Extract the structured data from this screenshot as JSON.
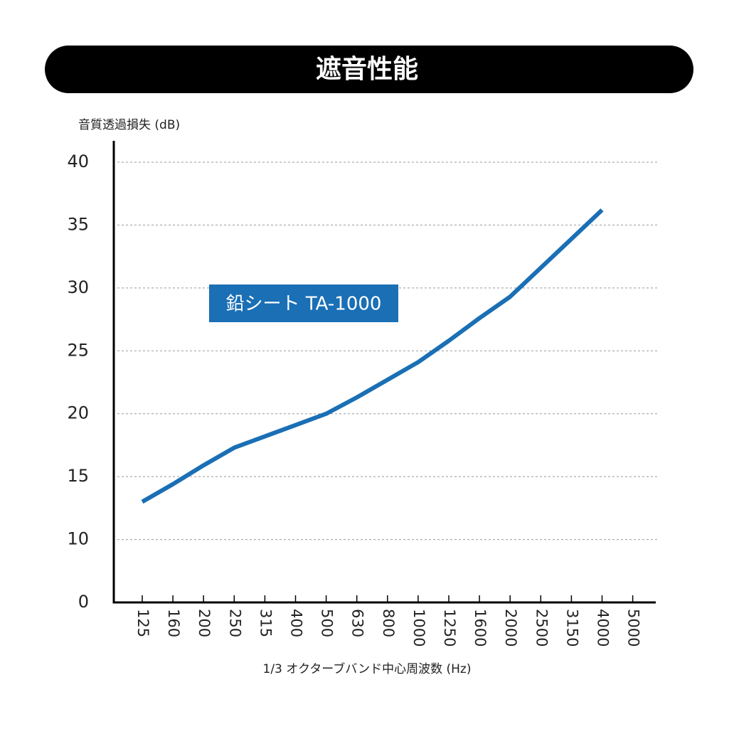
{
  "chart_data": {
    "type": "line",
    "title": "遮音性能",
    "y_label": "音質透過損失 (dB)",
    "x_label": "1/3 オクターブバンド中心周波数 (Hz)",
    "categories": [
      "125",
      "160",
      "200",
      "250",
      "315",
      "400",
      "500",
      "630",
      "800",
      "1000",
      "1250",
      "1600",
      "2000",
      "2500",
      "3150",
      "4000",
      "5000"
    ],
    "series": [
      {
        "name": "鉛シート TA-1000",
        "color": "#1a6fb5",
        "values": [
          13.0,
          14.4,
          15.9,
          17.3,
          18.2,
          19.1,
          20.0,
          21.3,
          22.7,
          24.1,
          25.8,
          27.6,
          29.3,
          31.6,
          33.9,
          36.2,
          null
        ]
      }
    ],
    "ylim": [
      0,
      40
    ],
    "yticks": [
      0,
      10,
      15,
      20,
      25,
      30,
      35,
      40
    ],
    "grid": true
  }
}
